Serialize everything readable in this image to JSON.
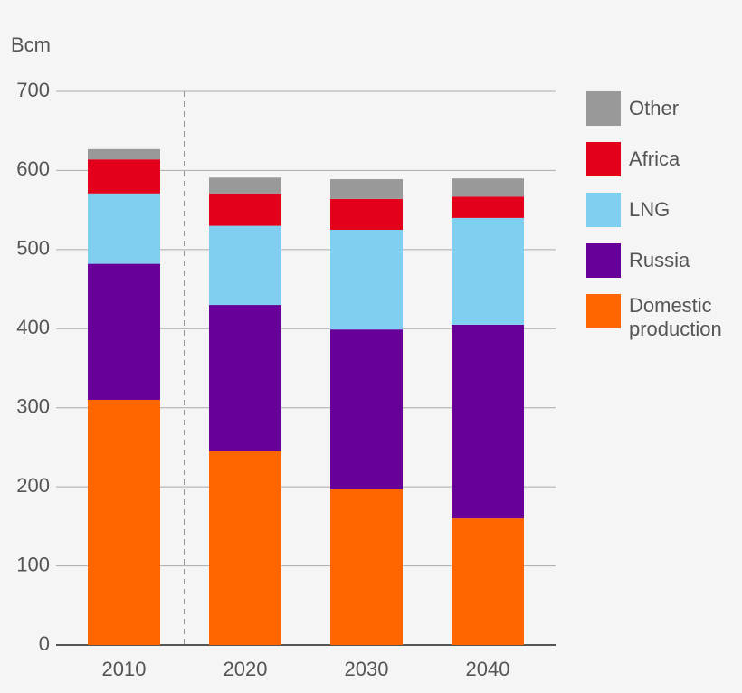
{
  "chart_data": {
    "type": "stacked_bar",
    "y_label": "Bcm",
    "categories": [
      "2010",
      "2020",
      "2030",
      "2040"
    ],
    "series": [
      {
        "name": "Domestic production",
        "color": "#ff6600",
        "values": [
          310,
          245,
          197,
          160
        ]
      },
      {
        "name": "Russia",
        "color": "#660099",
        "values": [
          172,
          185,
          202,
          245
        ]
      },
      {
        "name": "LNG",
        "color": "#80cff0",
        "values": [
          89,
          100,
          126,
          135
        ]
      },
      {
        "name": "Africa",
        "color": "#e2001a",
        "values": [
          43,
          41,
          39,
          27
        ]
      },
      {
        "name": "Other",
        "color": "#999999",
        "values": [
          13,
          20,
          25,
          23
        ]
      }
    ],
    "ylim": [
      0,
      700
    ],
    "yticks": [
      0,
      100,
      200,
      300,
      400,
      500,
      600,
      700
    ],
    "grid": true,
    "legend": "right"
  }
}
